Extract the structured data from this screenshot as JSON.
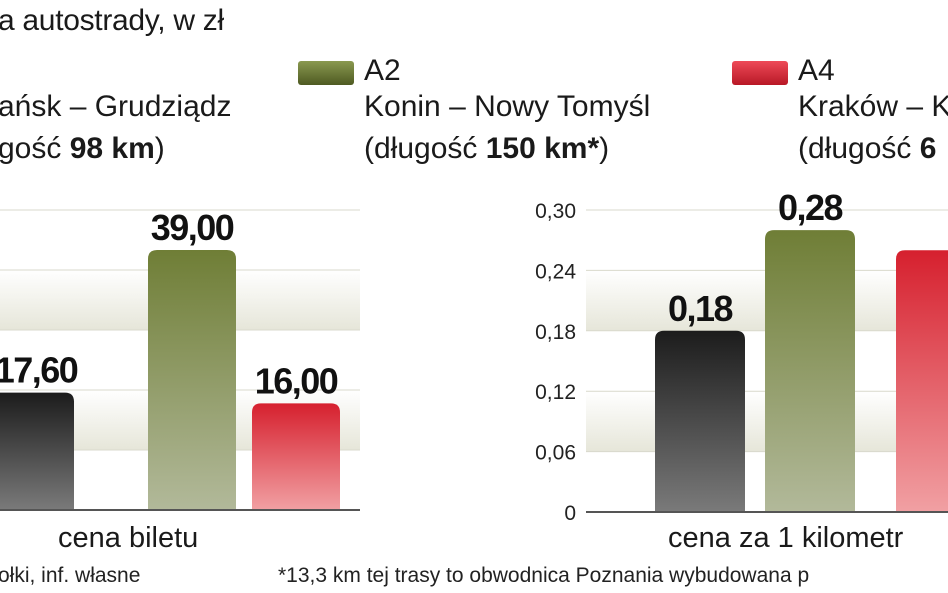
{
  "subtitle": "a autostrady, w zł",
  "legend": [
    {
      "name": "",
      "route": "ańsk – Grudziądz",
      "len_prefix": "gość ",
      "len_value": "98 km",
      "len_suffix": ")",
      "color": "#1a1a1a"
    },
    {
      "name": "A2",
      "route": "Konin – Nowy Tomyśl",
      "len_prefix": "(długość ",
      "len_value": "150 km*",
      "len_suffix": ")",
      "color": "#6b7a35"
    },
    {
      "name": "A4",
      "route": "Kraków – K",
      "len_prefix": "(długość ",
      "len_value": "6",
      "len_suffix": "",
      "color": "#d42a3a"
    }
  ],
  "chart_data": [
    {
      "type": "bar",
      "xlabel": "cena biletu",
      "series": [
        {
          "values": [
            17.6,
            39.0,
            16.0
          ],
          "labels": [
            "17,60",
            "39,00",
            "16,00"
          ]
        }
      ],
      "colors": [
        "#1a1a1a",
        "#6b7a35",
        "#d42a3a"
      ],
      "ylim": [
        0,
        45
      ],
      "grid": "banded"
    },
    {
      "type": "bar",
      "xlabel": "cena za 1 kilometr",
      "yticks": [
        "0",
        "0,06",
        "0,12",
        "0,18",
        "0,24",
        "0,30"
      ],
      "series": [
        {
          "values": [
            0.18,
            0.28,
            0.26
          ],
          "labels": [
            "0,18",
            "0,28",
            ""
          ]
        }
      ],
      "colors": [
        "#1a1a1a",
        "#6b7a35",
        "#d42a3a"
      ],
      "ylim": [
        0,
        0.3
      ],
      "grid": "banded"
    }
  ],
  "footer_left": "ołki, inf. własne",
  "footer_right": "*13,3 km tej trasy to obwodnica Poznania wybudowana p"
}
